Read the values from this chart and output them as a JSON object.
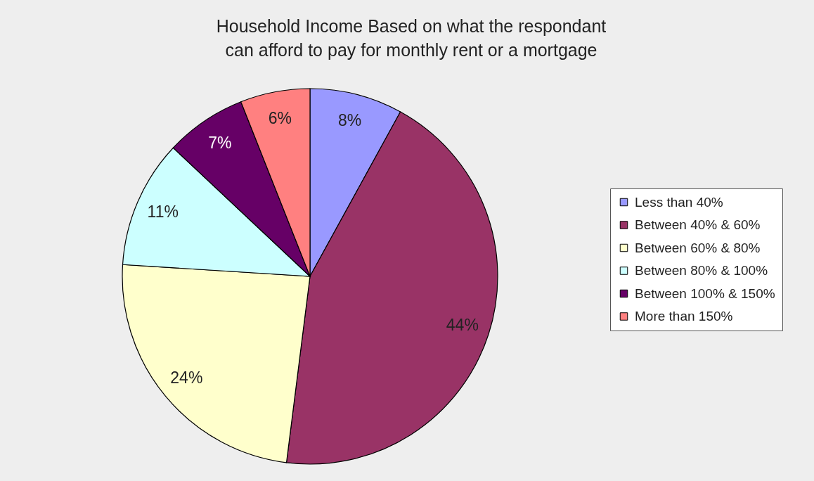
{
  "chart_data": {
    "type": "pie",
    "title": "Household Income Based on  what the respondant can afford to pay for monthly rent or a mortgage",
    "categories": [
      "Less than 40%",
      "Between 40% & 60%",
      "Between 60% & 80%",
      "Between 80% & 100%",
      "Between 100% & 150%",
      "More than 150%"
    ],
    "values": [
      8,
      44,
      24,
      11,
      7,
      6
    ],
    "value_labels": [
      "8%",
      "44%",
      "24%",
      "11%",
      "7%",
      "6%"
    ],
    "colors": [
      "#9999ff",
      "#993366",
      "#ffffcc",
      "#ccffff",
      "#660066",
      "#ff8080"
    ],
    "legend": "right"
  }
}
